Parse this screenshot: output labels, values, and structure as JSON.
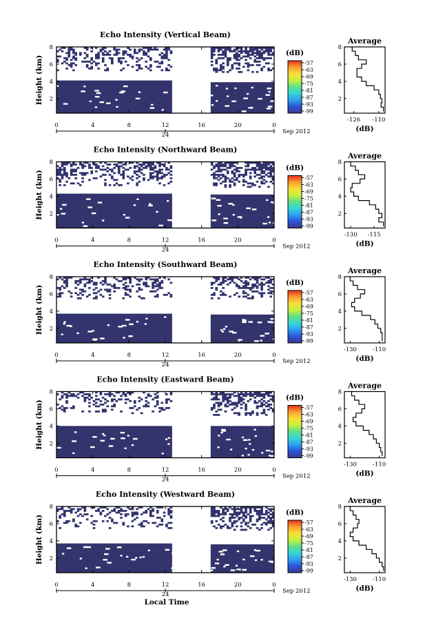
{
  "chart_data": [
    {
      "type": "heatmap",
      "title": "Echo Intensity (Vertical Beam)",
      "ylabel": "Height (km)",
      "yticks": [
        "2",
        "4",
        "6",
        "8"
      ],
      "ylim": [
        0.3,
        8
      ],
      "xticks": [
        "0",
        "4",
        "8",
        "12",
        "16",
        "20",
        "0"
      ],
      "xlim": [
        0,
        24
      ],
      "date_tick": "24",
      "date_label": "Sep 2012",
      "colorbar": {
        "unit": "(dB)",
        "ticks": [
          "-57",
          "-63",
          "-69",
          "-75",
          "-81",
          "-87",
          "-93",
          "-99"
        ],
        "range": [
          -99,
          -57
        ]
      },
      "blue_fill": [
        {
          "t0": 0.0,
          "t1": 12.75,
          "h0": 0.3,
          "h1": 4.1
        },
        {
          "t0": 17.0,
          "t1": 24.0,
          "h0": 0.3,
          "h1": 3.9
        }
      ],
      "upper_echo": [
        {
          "t0": 0.0,
          "t1": 12.75,
          "h0": 5.2,
          "h1": 8.0,
          "density": 0.35
        },
        {
          "t0": 17.0,
          "t1": 24.0,
          "h0": 5.0,
          "h1": 8.0,
          "density": 0.55
        }
      ],
      "average_profile": {
        "title": "Average",
        "xlabel": "(dB)",
        "xticks": [
          "-126",
          "-110"
        ],
        "xlim": [
          -132,
          -106
        ],
        "heights": [
          0.5,
          1.0,
          1.5,
          2.0,
          2.5,
          3.0,
          3.5,
          4.0,
          4.5,
          5.0,
          5.5,
          6.0,
          6.5,
          7.0,
          7.5,
          8.0
        ],
        "values": [
          -107,
          -108.5,
          -108,
          -109,
          -110,
          -113,
          -118,
          -121,
          -124,
          -124,
          -121,
          -118,
          -123,
          -125,
          -127,
          -128
        ]
      }
    },
    {
      "type": "heatmap",
      "title": "Echo Intensity (Northward Beam)",
      "ylabel": "Height (km)",
      "yticks": [
        "2",
        "4",
        "6",
        "8"
      ],
      "ylim": [
        0.3,
        8
      ],
      "xticks": [
        "0",
        "4",
        "8",
        "12",
        "16",
        "20",
        "0"
      ],
      "xlim": [
        0,
        24
      ],
      "date_tick": "24",
      "date_label": "Sep 2012",
      "colorbar": {
        "unit": "(dB)",
        "ticks": [
          "-57",
          "-63",
          "-69",
          "-75",
          "-81",
          "-87",
          "-93",
          "-99"
        ],
        "range": [
          -99,
          -57
        ]
      },
      "blue_fill": [
        {
          "t0": 0.0,
          "t1": 12.75,
          "h0": 0.3,
          "h1": 4.3
        },
        {
          "t0": 17.0,
          "t1": 24.0,
          "h0": 0.3,
          "h1": 4.2
        }
      ],
      "upper_echo": [
        {
          "t0": 0.0,
          "t1": 12.75,
          "h0": 5.2,
          "h1": 8.0,
          "density": 0.4
        },
        {
          "t0": 17.0,
          "t1": 24.0,
          "h0": 5.0,
          "h1": 8.0,
          "density": 0.55
        }
      ],
      "average_profile": {
        "title": "Average",
        "xlabel": "(dB)",
        "xticks": [
          "-130",
          "-115"
        ],
        "xlim": [
          -134,
          -108
        ],
        "heights": [
          0.5,
          1.0,
          1.5,
          2.0,
          2.5,
          3.0,
          3.5,
          4.0,
          4.5,
          5.0,
          5.5,
          6.0,
          6.5,
          7.0,
          7.5,
          8.0
        ],
        "values": [
          -109,
          -112,
          -110,
          -112,
          -114,
          -118,
          -125,
          -128,
          -130,
          -129,
          -124,
          -121,
          -125,
          -127,
          -130,
          -131
        ]
      }
    },
    {
      "type": "heatmap",
      "title": "Echo Intensity (Southward Beam)",
      "ylabel": "Height (km)",
      "yticks": [
        "2",
        "4",
        "6",
        "8"
      ],
      "ylim": [
        0.3,
        8
      ],
      "xticks": [
        "0",
        "4",
        "8",
        "12",
        "16",
        "20",
        "0"
      ],
      "xlim": [
        0,
        24
      ],
      "date_tick": "24",
      "date_label": "Sep 2012",
      "colorbar": {
        "unit": "(dB)",
        "ticks": [
          "-57",
          "-63",
          "-69",
          "-75",
          "-81",
          "-87",
          "-93",
          "-99"
        ],
        "range": [
          -99,
          -57
        ]
      },
      "blue_fill": [
        {
          "t0": 0.0,
          "t1": 12.75,
          "h0": 0.3,
          "h1": 3.7
        },
        {
          "t0": 17.0,
          "t1": 24.0,
          "h0": 0.3,
          "h1": 3.6
        }
      ],
      "upper_echo": [
        {
          "t0": 0.0,
          "t1": 12.75,
          "h0": 5.4,
          "h1": 8.0,
          "density": 0.3
        },
        {
          "t0": 17.0,
          "t1": 24.0,
          "h0": 5.4,
          "h1": 8.0,
          "density": 0.45
        }
      ],
      "average_profile": {
        "title": "Average",
        "xlabel": "(dB)",
        "xticks": [
          "-130",
          "-110"
        ],
        "xlim": [
          -134,
          -106
        ],
        "heights": [
          0.5,
          1.0,
          1.5,
          2.0,
          2.5,
          3.0,
          3.5,
          4.0,
          4.5,
          5.0,
          5.5,
          6.0,
          6.5,
          7.0,
          7.5,
          8.0
        ],
        "values": [
          -108,
          -108,
          -109,
          -111,
          -113,
          -116,
          -122,
          -127,
          -129,
          -127,
          -123,
          -120,
          -125,
          -128,
          -130,
          -131
        ]
      }
    },
    {
      "type": "heatmap",
      "title": "Echo Intensity (Eastward Beam)",
      "ylabel": "Height (km)",
      "yticks": [
        "2",
        "4",
        "6",
        "8"
      ],
      "ylim": [
        0.3,
        8
      ],
      "xticks": [
        "0",
        "4",
        "8",
        "12",
        "16",
        "20",
        "0"
      ],
      "xlim": [
        0,
        24
      ],
      "date_tick": "24",
      "date_label": "Sep 2012",
      "colorbar": {
        "unit": "(dB)",
        "ticks": [
          "-57",
          "-63",
          "-69",
          "-75",
          "-81",
          "-87",
          "-93",
          "-99"
        ],
        "range": [
          -99,
          -57
        ]
      },
      "blue_fill": [
        {
          "t0": 0.0,
          "t1": 12.75,
          "h0": 0.3,
          "h1": 4.0
        },
        {
          "t0": 17.0,
          "t1": 24.0,
          "h0": 0.3,
          "h1": 4.0
        }
      ],
      "upper_echo": [
        {
          "t0": 0.0,
          "t1": 12.75,
          "h0": 5.4,
          "h1": 8.0,
          "density": 0.3
        },
        {
          "t0": 17.0,
          "t1": 24.0,
          "h0": 5.2,
          "h1": 8.0,
          "density": 0.5
        }
      ],
      "average_profile": {
        "title": "Average",
        "xlabel": "(dB)",
        "xticks": [
          "-130",
          "-110"
        ],
        "xlim": [
          -134,
          -106
        ],
        "heights": [
          0.5,
          1.0,
          1.5,
          2.0,
          2.5,
          3.0,
          3.5,
          4.0,
          4.5,
          5.0,
          5.5,
          6.0,
          6.5,
          7.0,
          7.5,
          8.0
        ],
        "values": [
          -108,
          -109,
          -110,
          -112,
          -114,
          -117,
          -121,
          -126,
          -128,
          -126,
          -122,
          -120,
          -124,
          -127,
          -129,
          -130
        ]
      }
    },
    {
      "type": "heatmap",
      "title": "Echo Intensity (Westward Beam)",
      "ylabel": "Height (km)",
      "yticks": [
        "2",
        "4",
        "6",
        "8"
      ],
      "ylim": [
        0.3,
        8
      ],
      "xticks": [
        "0",
        "4",
        "8",
        "12",
        "16",
        "20",
        "0"
      ],
      "xlim": [
        0,
        24
      ],
      "date_tick": "24",
      "date_label": "Sep 2012",
      "xlabel": "Local Time",
      "colorbar": {
        "unit": "(dB)",
        "ticks": [
          "-57",
          "-63",
          "-69",
          "-75",
          "-81",
          "-87",
          "-93",
          "-99"
        ],
        "range": [
          -99,
          -57
        ]
      },
      "blue_fill": [
        {
          "t0": 0.0,
          "t1": 12.75,
          "h0": 0.3,
          "h1": 3.7
        },
        {
          "t0": 17.0,
          "t1": 24.0,
          "h0": 0.3,
          "h1": 3.6
        }
      ],
      "upper_echo": [
        {
          "t0": 0.0,
          "t1": 12.75,
          "h0": 5.4,
          "h1": 8.0,
          "density": 0.3
        },
        {
          "t0": 17.0,
          "t1": 24.0,
          "h0": 5.2,
          "h1": 8.0,
          "density": 0.5
        }
      ],
      "average_profile": {
        "title": "Average",
        "xlabel": "(dB)",
        "xticks": [
          "-130",
          "-110"
        ],
        "xlim": [
          -134,
          -106
        ],
        "heights": [
          0.5,
          1.0,
          1.5,
          2.0,
          2.5,
          3.0,
          3.5,
          4.0,
          4.5,
          5.0,
          5.5,
          6.0,
          6.5,
          7.0,
          7.5,
          8.0
        ],
        "values": [
          -107,
          -108,
          -110,
          -112,
          -115,
          -119,
          -124,
          -128,
          -130,
          -128,
          -125,
          -124,
          -126,
          -128,
          -130,
          -131
        ]
      }
    }
  ],
  "colors": {
    "echo_fill": "#33336e",
    "colorbar_stops": [
      "#3a3a8c",
      "#2c54d6",
      "#2fa0f0",
      "#36d6d6",
      "#5ee08a",
      "#c8f040",
      "#f8e038",
      "#f8a030",
      "#e83020"
    ]
  }
}
